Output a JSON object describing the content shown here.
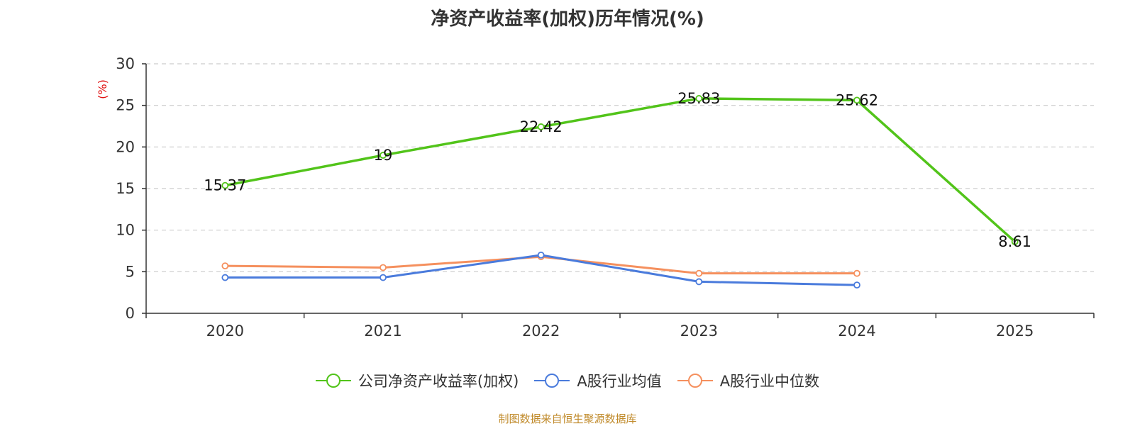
{
  "chart_data": {
    "type": "line",
    "title": "净资产收益率(加权)历年情况(%)",
    "ylabel": "(%)",
    "xlabel": "",
    "ylim": [
      0,
      30
    ],
    "yticks": [
      0,
      5,
      10,
      15,
      20,
      25,
      30
    ],
    "grid": "horizontal-dashed",
    "categories": [
      "2020",
      "2021",
      "2022",
      "2023",
      "2024",
      "2025"
    ],
    "series": [
      {
        "name": "公司净资产收益率(加权)",
        "color": "#52c41a",
        "values": [
          15.37,
          19,
          22.42,
          25.83,
          25.62,
          8.61
        ],
        "labels": [
          "15.37",
          "19",
          "22.42",
          "25.83",
          "25.62",
          "8.61"
        ]
      },
      {
        "name": "A股行业均值",
        "color": "#4a7bdc",
        "values": [
          4.3,
          4.3,
          7.0,
          3.8,
          3.4,
          null
        ]
      },
      {
        "name": "A股行业中位数",
        "color": "#f5905e",
        "values": [
          5.7,
          5.5,
          6.8,
          4.8,
          4.8,
          null
        ]
      }
    ],
    "legend_position": "bottom-center",
    "source": "制图数据来自恒生聚源数据库"
  }
}
